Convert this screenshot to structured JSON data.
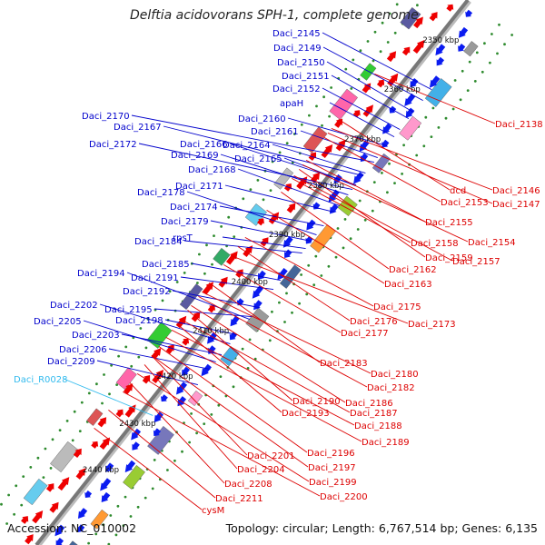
{
  "title": "Delftia acidovorans SPH-1, complete genome",
  "footer": {
    "accession": "Accession: NC_010002",
    "topology": "Topology: circular; Length: 6,767,514 bp; Genes: 6,135"
  },
  "colors": {
    "forward_strand_label": "#0000cc",
    "reverse_strand_label": "#dd0000",
    "rna_label": "#33bbee",
    "forward_arrow": "#0b1cf0",
    "reverse_arrow": "#ee0000",
    "backbone": "#777777",
    "dots": "#2e8b2e"
  },
  "ruler": [
    {
      "label": "2350 kbp"
    },
    {
      "label": "2360 kbp"
    },
    {
      "label": "2370 kbp"
    },
    {
      "label": "2380 kbp"
    },
    {
      "label": "2390 kbp"
    },
    {
      "label": "2400 kbp"
    },
    {
      "label": "2410 kbp"
    },
    {
      "label": "2420 kbp"
    },
    {
      "label": "2430 kbp"
    },
    {
      "label": "2440 kbp"
    }
  ],
  "forward_genes": [
    {
      "name": "Daci_2145"
    },
    {
      "name": "Daci_2149"
    },
    {
      "name": "Daci_2150"
    },
    {
      "name": "Daci_2151"
    },
    {
      "name": "Daci_2152"
    },
    {
      "name": "apaH"
    },
    {
      "name": "Daci_2170"
    },
    {
      "name": "Daci_2160"
    },
    {
      "name": "Daci_2167"
    },
    {
      "name": "Daci_2161"
    },
    {
      "name": "Daci_2172"
    },
    {
      "name": "Daci_2166"
    },
    {
      "name": "Daci_2164"
    },
    {
      "name": "Daci_2169"
    },
    {
      "name": "Daci_2165"
    },
    {
      "name": "Daci_2168"
    },
    {
      "name": "Daci_2171"
    },
    {
      "name": "Daci_2178"
    },
    {
      "name": "Daci_2174"
    },
    {
      "name": "Daci_2179"
    },
    {
      "name": "Daci_2184"
    },
    {
      "name": "rpsT"
    },
    {
      "name": "Daci_2185"
    },
    {
      "name": "Daci_2194"
    },
    {
      "name": "Daci_2191"
    },
    {
      "name": "Daci_2192"
    },
    {
      "name": "Daci_2202"
    },
    {
      "name": "Daci_2195"
    },
    {
      "name": "Daci_2205"
    },
    {
      "name": "Daci_2198"
    },
    {
      "name": "Daci_2203"
    },
    {
      "name": "Daci_2206"
    },
    {
      "name": "Daci_2209"
    }
  ],
  "rna_genes": [
    {
      "name": "Daci_R0028"
    }
  ],
  "reverse_genes": [
    {
      "name": "Daci_2138"
    },
    {
      "name": "dcd"
    },
    {
      "name": "Daci_2146"
    },
    {
      "name": "Daci_2153"
    },
    {
      "name": "Daci_2147"
    },
    {
      "name": "Daci_2155"
    },
    {
      "name": "Daci_2154"
    },
    {
      "name": "Daci_2158"
    },
    {
      "name": "Daci_2159"
    },
    {
      "name": "Daci_2157"
    },
    {
      "name": "Daci_2162"
    },
    {
      "name": "Daci_2163"
    },
    {
      "name": "Daci_2175"
    },
    {
      "name": "Daci_2176"
    },
    {
      "name": "Daci_2173"
    },
    {
      "name": "Daci_2177"
    },
    {
      "name": "Daci_2183"
    },
    {
      "name": "Daci_2180"
    },
    {
      "name": "Daci_2182"
    },
    {
      "name": "Daci_2190"
    },
    {
      "name": "Daci_2186"
    },
    {
      "name": "Daci_2193"
    },
    {
      "name": "Daci_2187"
    },
    {
      "name": "Daci_2188"
    },
    {
      "name": "Daci_2189"
    },
    {
      "name": "Daci_2201"
    },
    {
      "name": "Daci_2196"
    },
    {
      "name": "Daci_2204"
    },
    {
      "name": "Daci_2197"
    },
    {
      "name": "Daci_2208"
    },
    {
      "name": "Daci_2199"
    },
    {
      "name": "Daci_2200"
    },
    {
      "name": "Daci_2211"
    },
    {
      "name": "cysM"
    }
  ]
}
